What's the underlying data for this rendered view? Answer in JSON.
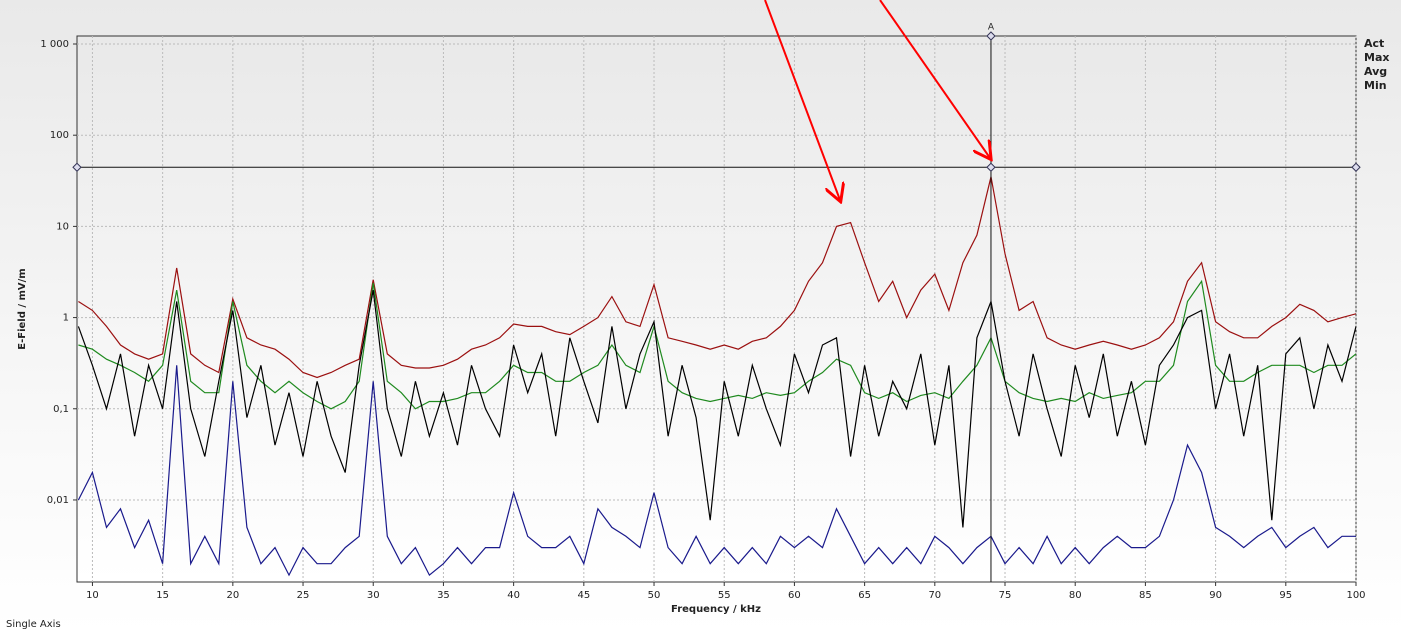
{
  "chart_data": {
    "type": "line",
    "xlabel": "Frequency / kHz",
    "ylabel": "E-Field / mV/m",
    "footer": "Single Axis",
    "log_y": true,
    "grid": true,
    "legend": "right",
    "xlim": [
      8.9,
      100
    ],
    "ylim": [
      0.00126,
      1224
    ],
    "xticks": [
      10,
      15,
      20,
      25,
      30,
      35,
      40,
      45,
      50,
      55,
      60,
      65,
      70,
      75,
      80,
      85,
      90,
      95,
      100
    ],
    "yticks": [
      {
        "value": 1000,
        "label": "1 000"
      },
      100,
      10,
      1,
      {
        "value": 0.1,
        "label": "0,1"
      },
      {
        "value": 0.01,
        "label": "0,01"
      }
    ],
    "cursor": {
      "label": "A",
      "x": 74,
      "y": 44.5
    },
    "x": [
      9,
      10,
      11,
      12,
      13,
      14,
      15,
      16,
      17,
      18,
      19,
      20,
      21,
      22,
      23,
      24,
      25,
      26,
      27,
      28,
      29,
      30,
      31,
      32,
      33,
      34,
      35,
      36,
      37,
      38,
      39,
      40,
      41,
      42,
      43,
      44,
      45,
      46,
      47,
      48,
      49,
      50,
      51,
      52,
      53,
      54,
      55,
      56,
      57,
      58,
      59,
      60,
      61,
      62,
      63,
      64,
      65,
      66,
      67,
      68,
      69,
      70,
      71,
      72,
      73,
      74,
      75,
      76,
      77,
      78,
      79,
      80,
      81,
      82,
      83,
      84,
      85,
      86,
      87,
      88,
      89,
      90,
      91,
      92,
      93,
      94,
      95,
      96,
      97,
      98,
      99,
      100
    ],
    "series": [
      {
        "name": "Act",
        "color": "#000000",
        "values": [
          0.8,
          0.3,
          0.1,
          0.4,
          0.05,
          0.3,
          0.1,
          1.5,
          0.1,
          0.03,
          0.2,
          1.2,
          0.08,
          0.3,
          0.04,
          0.15,
          0.03,
          0.2,
          0.05,
          0.02,
          0.3,
          2.0,
          0.1,
          0.03,
          0.2,
          0.05,
          0.15,
          0.04,
          0.3,
          0.1,
          0.05,
          0.5,
          0.15,
          0.4,
          0.05,
          0.6,
          0.2,
          0.07,
          0.8,
          0.1,
          0.4,
          0.9,
          0.05,
          0.3,
          0.08,
          0.006,
          0.2,
          0.05,
          0.3,
          0.1,
          0.04,
          0.4,
          0.15,
          0.5,
          0.6,
          0.03,
          0.3,
          0.05,
          0.2,
          0.1,
          0.4,
          0.04,
          0.3,
          0.005,
          0.6,
          1.5,
          0.2,
          0.05,
          0.4,
          0.1,
          0.03,
          0.3,
          0.08,
          0.4,
          0.05,
          0.2,
          0.04,
          0.3,
          0.5,
          1.0,
          1.2,
          0.1,
          0.4,
          0.05,
          0.3,
          0.006,
          0.4,
          0.6,
          0.1,
          0.5,
          0.2,
          0.8
        ]
      },
      {
        "name": "Max",
        "color": "#9b1010",
        "values": [
          1.5,
          1.2,
          0.8,
          0.5,
          0.4,
          0.35,
          0.4,
          3.5,
          0.4,
          0.3,
          0.25,
          1.6,
          0.6,
          0.5,
          0.45,
          0.35,
          0.25,
          0.22,
          0.25,
          0.3,
          0.35,
          2.6,
          0.4,
          0.3,
          0.28,
          0.28,
          0.3,
          0.35,
          0.45,
          0.5,
          0.6,
          0.85,
          0.8,
          0.8,
          0.7,
          0.65,
          0.8,
          1.0,
          1.7,
          0.9,
          0.8,
          2.3,
          0.6,
          0.55,
          0.5,
          0.45,
          0.5,
          0.45,
          0.55,
          0.6,
          0.8,
          1.2,
          2.5,
          4.0,
          10,
          11,
          4.0,
          1.5,
          2.5,
          1.0,
          2.0,
          3.0,
          1.2,
          4.0,
          8.0,
          35,
          5.0,
          1.2,
          1.5,
          0.6,
          0.5,
          0.45,
          0.5,
          0.55,
          0.5,
          0.45,
          0.5,
          0.6,
          0.9,
          2.5,
          4.0,
          0.9,
          0.7,
          0.6,
          0.6,
          0.8,
          1.0,
          1.4,
          1.2,
          0.9,
          1.0,
          1.1
        ]
      },
      {
        "name": "Avg",
        "color": "#1f8a1f",
        "values": [
          0.5,
          0.45,
          0.35,
          0.3,
          0.25,
          0.2,
          0.3,
          2.0,
          0.2,
          0.15,
          0.15,
          1.5,
          0.3,
          0.2,
          0.15,
          0.2,
          0.15,
          0.12,
          0.1,
          0.12,
          0.2,
          2.4,
          0.2,
          0.15,
          0.1,
          0.12,
          0.12,
          0.13,
          0.15,
          0.15,
          0.2,
          0.3,
          0.25,
          0.25,
          0.2,
          0.2,
          0.25,
          0.3,
          0.5,
          0.3,
          0.25,
          0.8,
          0.2,
          0.15,
          0.13,
          0.12,
          0.13,
          0.14,
          0.13,
          0.15,
          0.14,
          0.15,
          0.2,
          0.25,
          0.35,
          0.3,
          0.15,
          0.13,
          0.15,
          0.12,
          0.14,
          0.15,
          0.13,
          0.2,
          0.3,
          0.6,
          0.2,
          0.15,
          0.13,
          0.12,
          0.13,
          0.12,
          0.15,
          0.13,
          0.14,
          0.15,
          0.2,
          0.2,
          0.3,
          1.5,
          2.5,
          0.3,
          0.2,
          0.2,
          0.25,
          0.3,
          0.3,
          0.3,
          0.25,
          0.3,
          0.3,
          0.4
        ]
      },
      {
        "name": "Min",
        "color": "#1a1a8c",
        "values": [
          0.01,
          0.02,
          0.005,
          0.008,
          0.003,
          0.006,
          0.002,
          0.3,
          0.002,
          0.004,
          0.002,
          0.2,
          0.005,
          0.002,
          0.003,
          0.0015,
          0.003,
          0.002,
          0.002,
          0.003,
          0.004,
          0.2,
          0.004,
          0.002,
          0.003,
          0.0015,
          0.002,
          0.003,
          0.002,
          0.003,
          0.003,
          0.012,
          0.004,
          0.003,
          0.003,
          0.004,
          0.002,
          0.008,
          0.005,
          0.004,
          0.003,
          0.012,
          0.003,
          0.002,
          0.004,
          0.002,
          0.003,
          0.002,
          0.003,
          0.002,
          0.004,
          0.003,
          0.004,
          0.003,
          0.008,
          0.004,
          0.002,
          0.003,
          0.002,
          0.003,
          0.002,
          0.004,
          0.003,
          0.002,
          0.003,
          0.004,
          0.002,
          0.003,
          0.002,
          0.004,
          0.002,
          0.003,
          0.002,
          0.003,
          0.004,
          0.003,
          0.003,
          0.004,
          0.01,
          0.04,
          0.02,
          0.005,
          0.004,
          0.003,
          0.004,
          0.005,
          0.003,
          0.004,
          0.005,
          0.003,
          0.004,
          0.004
        ]
      }
    ]
  }
}
